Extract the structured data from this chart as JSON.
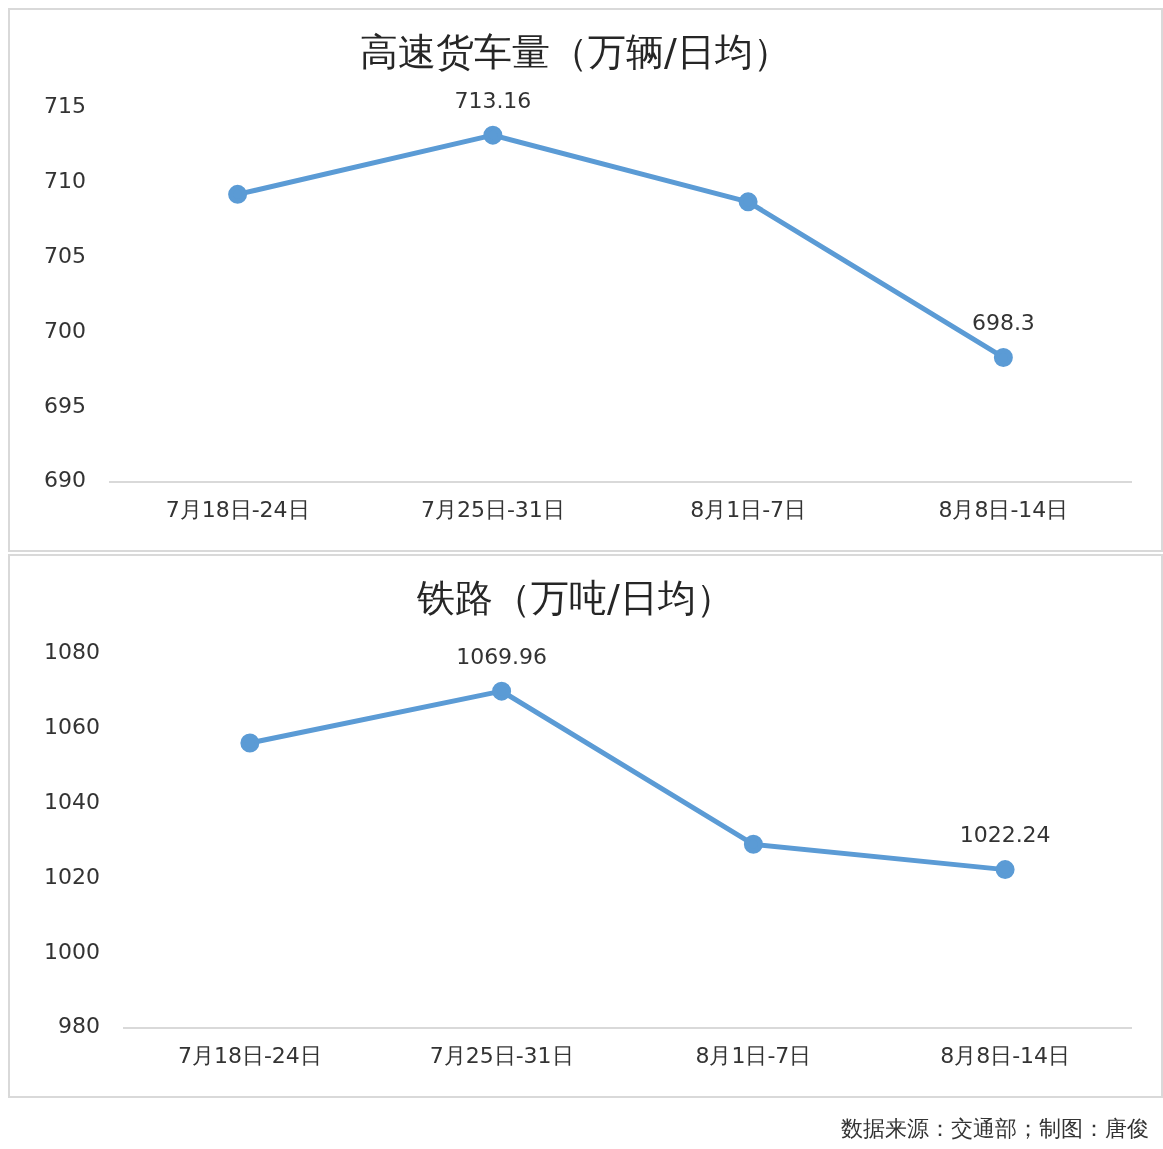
{
  "chart_data": [
    {
      "type": "line",
      "title": "高速货车量（万辆/日均）",
      "categories": [
        "7月18日-24日",
        "7月25日-31日",
        "8月1日-7日",
        "8月8日-14日"
      ],
      "series": [
        {
          "color": "#5b9bd5",
          "values": [
            709.2,
            713.16,
            708.7,
            698.3
          ],
          "value_labels": [
            null,
            "713.16",
            null,
            "698.3"
          ]
        }
      ],
      "ylim": [
        690,
        715
      ],
      "yticks": [
        690,
        695,
        700,
        705,
        710,
        715
      ],
      "grid": false,
      "legend": false,
      "marker": "circle",
      "line_style": "solid"
    },
    {
      "type": "line",
      "title": "铁路（万吨/日均）",
      "categories": [
        "7月18日-24日",
        "7月25日-31日",
        "8月1日-7日",
        "8月8日-14日"
      ],
      "series": [
        {
          "color": "#5b9bd5",
          "values": [
            1056.1,
            1069.96,
            1029,
            1022.24
          ],
          "value_labels": [
            null,
            "1069.96",
            null,
            "1022.24"
          ]
        }
      ],
      "ylim": [
        980,
        1080
      ],
      "yticks": [
        980,
        1000,
        1020,
        1040,
        1060,
        1080
      ],
      "grid": false,
      "legend": false,
      "marker": "circle",
      "line_style": "solid",
      "annotations": [
        "数据来源：交通部；制图：唐俊"
      ]
    }
  ]
}
